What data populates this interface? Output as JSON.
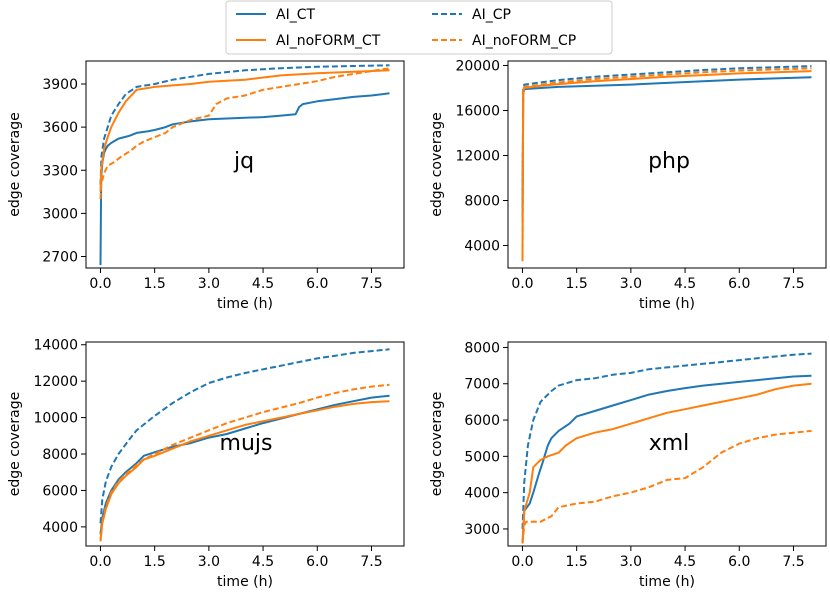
{
  "colors": {
    "ct": "#1f77b4",
    "cp": "#ff7f0e"
  },
  "legend": {
    "items": [
      {
        "label": "AI_CT",
        "color": "#1f77b4",
        "dash": false
      },
      {
        "label": "AI_CP",
        "color": "#1f77b4",
        "dash": true
      },
      {
        "label": "AI_noFORM_CT",
        "color": "#ff7f0e",
        "dash": false
      },
      {
        "label": "AI_noFORM_CP",
        "color": "#ff7f0e",
        "dash": true
      }
    ]
  },
  "chart_data": [
    {
      "type": "line",
      "title": "jq",
      "xlabel": "time (h)",
      "ylabel": "edge coverage",
      "xlim": [
        -0.4,
        8.4
      ],
      "ylim": [
        2620,
        4060
      ],
      "xticks": [
        0.0,
        1.5,
        3.0,
        4.5,
        6.0,
        7.5
      ],
      "xtick_labels": [
        "0.0",
        "1.5",
        "3.0",
        "4.5",
        "6.0",
        "7.5"
      ],
      "yticks": [
        2700,
        3000,
        3300,
        3600,
        3900
      ],
      "ytick_labels": [
        "2700",
        "3000",
        "3300",
        "3600",
        "3900"
      ],
      "series": [
        {
          "name": "AI_CT",
          "color": "#1f77b4",
          "dash": false,
          "x": [
            0,
            0.02,
            0.05,
            0.1,
            0.15,
            0.2,
            0.3,
            0.5,
            0.8,
            1.0,
            1.3,
            1.5,
            1.8,
            2.0,
            2.5,
            3.0,
            3.5,
            4.0,
            4.5,
            5.0,
            5.4,
            5.5,
            5.6,
            6.0,
            6.5,
            7.0,
            7.5,
            8.0
          ],
          "y": [
            2640,
            3250,
            3350,
            3420,
            3450,
            3470,
            3490,
            3520,
            3540,
            3560,
            3570,
            3580,
            3600,
            3620,
            3640,
            3655,
            3660,
            3665,
            3670,
            3680,
            3690,
            3740,
            3760,
            3780,
            3795,
            3810,
            3820,
            3835
          ]
        },
        {
          "name": "AI_CP",
          "color": "#1f77b4",
          "dash": true,
          "x": [
            0,
            0.03,
            0.1,
            0.2,
            0.3,
            0.5,
            0.7,
            1.0,
            1.5,
            2.0,
            2.5,
            3.0,
            4.0,
            5.0,
            6.0,
            7.0,
            8.0
          ],
          "y": [
            3200,
            3400,
            3520,
            3600,
            3680,
            3760,
            3830,
            3880,
            3900,
            3930,
            3950,
            3970,
            3995,
            4010,
            4020,
            4025,
            4030
          ]
        },
        {
          "name": "AI_noFORM_CT",
          "color": "#ff7f0e",
          "dash": false,
          "x": [
            0,
            0.02,
            0.1,
            0.2,
            0.3,
            0.5,
            0.7,
            1.0,
            1.5,
            2.0,
            2.5,
            3.0,
            4.0,
            5.0,
            6.0,
            7.0,
            8.0
          ],
          "y": [
            3150,
            3300,
            3450,
            3530,
            3600,
            3700,
            3780,
            3860,
            3880,
            3890,
            3900,
            3915,
            3930,
            3960,
            3975,
            3985,
            3995
          ]
        },
        {
          "name": "AI_noFORM_CP",
          "color": "#ff7f0e",
          "dash": true,
          "x": [
            0,
            0.02,
            0.1,
            0.2,
            0.4,
            0.6,
            0.8,
            1.0,
            1.2,
            1.5,
            1.8,
            2.0,
            2.5,
            3.0,
            3.2,
            3.5,
            4.0,
            4.5,
            5.0,
            5.5,
            6.0,
            6.5,
            7.0,
            7.5,
            8.0
          ],
          "y": [
            3100,
            3200,
            3280,
            3330,
            3360,
            3400,
            3430,
            3470,
            3500,
            3530,
            3560,
            3600,
            3650,
            3680,
            3760,
            3800,
            3820,
            3860,
            3880,
            3900,
            3920,
            3950,
            3970,
            3990,
            4010
          ]
        }
      ]
    },
    {
      "type": "line",
      "title": "php",
      "xlabel": "time (h)",
      "ylabel": "edge coverage",
      "xlim": [
        -0.4,
        8.4
      ],
      "ylim": [
        2000,
        20400
      ],
      "xticks": [
        0.0,
        1.5,
        3.0,
        4.5,
        6.0,
        7.5
      ],
      "xtick_labels": [
        "0.0",
        "1.5",
        "3.0",
        "4.5",
        "6.0",
        "7.5"
      ],
      "yticks": [
        4000,
        8000,
        12000,
        16000,
        20000
      ],
      "ytick_labels": [
        "4000",
        "8000",
        "12000",
        "16000",
        "20000"
      ],
      "series": [
        {
          "name": "AI_CT",
          "color": "#1f77b4",
          "dash": false,
          "x": [
            0,
            0.02,
            0.05,
            0.5,
            1.0,
            2.0,
            3.0,
            4.0,
            5.0,
            6.0,
            7.0,
            8.0
          ],
          "y": [
            6500,
            17500,
            17900,
            18000,
            18100,
            18200,
            18300,
            18450,
            18600,
            18750,
            18850,
            18950
          ]
        },
        {
          "name": "AI_CP",
          "color": "#1f77b4",
          "dash": true,
          "x": [
            0,
            0.02,
            0.05,
            0.5,
            1.0,
            2.0,
            3.0,
            4.0,
            5.0,
            6.0,
            7.0,
            8.0
          ],
          "y": [
            7000,
            18000,
            18300,
            18500,
            18700,
            19000,
            19200,
            19400,
            19600,
            19750,
            19850,
            19950
          ]
        },
        {
          "name": "AI_noFORM_CT",
          "color": "#ff7f0e",
          "dash": false,
          "x": [
            0,
            0.02,
            0.05,
            0.5,
            1.0,
            2.0,
            3.0,
            4.0,
            5.0,
            6.0,
            7.0,
            8.0
          ],
          "y": [
            2600,
            17700,
            18000,
            18200,
            18350,
            18600,
            18800,
            19000,
            19150,
            19300,
            19400,
            19500
          ]
        },
        {
          "name": "AI_noFORM_CP",
          "color": "#ff7f0e",
          "dash": true,
          "x": [
            0,
            0.02,
            0.05,
            0.5,
            1.0,
            2.0,
            3.0,
            4.0,
            5.0,
            6.0,
            7.0,
            8.0
          ],
          "y": [
            2800,
            17800,
            18100,
            18300,
            18500,
            18800,
            19000,
            19200,
            19400,
            19550,
            19650,
            19750
          ]
        }
      ]
    },
    {
      "type": "line",
      "title": "mujs",
      "xlabel": "time (h)",
      "ylabel": "edge coverage",
      "xlim": [
        -0.4,
        8.4
      ],
      "ylim": [
        2950,
        14150
      ],
      "xticks": [
        0.0,
        1.5,
        3.0,
        4.5,
        6.0,
        7.5
      ],
      "xtick_labels": [
        "0.0",
        "1.5",
        "3.0",
        "4.5",
        "6.0",
        "7.5"
      ],
      "yticks": [
        4000,
        6000,
        8000,
        10000,
        12000,
        14000
      ],
      "ytick_labels": [
        "4000",
        "6000",
        "8000",
        "10000",
        "12000",
        "14000"
      ],
      "series": [
        {
          "name": "AI_CT",
          "color": "#1f77b4",
          "dash": false,
          "x": [
            0,
            0.05,
            0.15,
            0.3,
            0.5,
            0.7,
            1.0,
            1.2,
            1.5,
            2.0,
            2.5,
            3.0,
            3.5,
            4.0,
            4.5,
            5.0,
            5.5,
            6.0,
            6.5,
            7.0,
            7.5,
            8.0
          ],
          "y": [
            3600,
            4500,
            5300,
            6000,
            6600,
            7000,
            7500,
            7900,
            8100,
            8400,
            8600,
            8900,
            9100,
            9400,
            9700,
            9950,
            10200,
            10450,
            10700,
            10900,
            11100,
            11200
          ]
        },
        {
          "name": "AI_CP",
          "color": "#1f77b4",
          "dash": true,
          "x": [
            0,
            0.05,
            0.15,
            0.3,
            0.5,
            0.8,
            1.0,
            1.5,
            2.0,
            2.5,
            3.0,
            3.5,
            4.0,
            4.5,
            5.0,
            5.5,
            6.0,
            6.5,
            7.0,
            7.5,
            8.0
          ],
          "y": [
            4200,
            5500,
            6500,
            7300,
            8000,
            8800,
            9300,
            10100,
            10800,
            11400,
            11900,
            12200,
            12450,
            12650,
            12850,
            13050,
            13250,
            13400,
            13550,
            13650,
            13750
          ]
        },
        {
          "name": "AI_noFORM_CT",
          "color": "#ff7f0e",
          "dash": false,
          "x": [
            0,
            0.05,
            0.15,
            0.3,
            0.5,
            0.7,
            1.0,
            1.2,
            1.5,
            2.0,
            2.5,
            3.0,
            3.5,
            4.0,
            4.5,
            5.0,
            5.5,
            6.0,
            6.5,
            7.0,
            7.5,
            8.0
          ],
          "y": [
            3200,
            4200,
            5000,
            5800,
            6400,
            6800,
            7300,
            7700,
            7900,
            8300,
            8700,
            9000,
            9300,
            9600,
            9800,
            10000,
            10200,
            10400,
            10600,
            10750,
            10850,
            10900
          ]
        },
        {
          "name": "AI_noFORM_CP",
          "color": "#ff7f0e",
          "dash": true,
          "x": [
            0,
            0.05,
            0.15,
            0.3,
            0.5,
            0.7,
            1.0,
            1.2,
            1.5,
            2.0,
            2.5,
            3.0,
            3.5,
            4.0,
            4.5,
            5.0,
            5.5,
            6.0,
            6.5,
            7.0,
            7.5,
            8.0
          ],
          "y": [
            3300,
            4300,
            5100,
            5900,
            6500,
            6900,
            7400,
            7700,
            8000,
            8500,
            8900,
            9300,
            9700,
            10000,
            10300,
            10550,
            10800,
            11100,
            11350,
            11550,
            11700,
            11800
          ]
        }
      ]
    },
    {
      "type": "line",
      "title": "xml",
      "xlabel": "time (h)",
      "ylabel": "edge coverage",
      "xlim": [
        -0.4,
        8.4
      ],
      "ylim": [
        2530,
        8150
      ],
      "xticks": [
        0.0,
        1.5,
        3.0,
        4.5,
        6.0,
        7.5
      ],
      "xtick_labels": [
        "0.0",
        "1.5",
        "3.0",
        "4.5",
        "6.0",
        "7.5"
      ],
      "yticks": [
        3000,
        4000,
        5000,
        6000,
        7000,
        8000
      ],
      "ytick_labels": [
        "3000",
        "4000",
        "5000",
        "6000",
        "7000",
        "8000"
      ],
      "series": [
        {
          "name": "AI_CT",
          "color": "#1f77b4",
          "dash": false,
          "x": [
            0,
            0.05,
            0.2,
            0.3,
            0.45,
            0.55,
            0.7,
            0.8,
            1.0,
            1.3,
            1.5,
            2.0,
            2.5,
            3.0,
            3.5,
            4.0,
            4.5,
            5.0,
            5.5,
            6.0,
            6.5,
            7.0,
            7.5,
            8.0
          ],
          "y": [
            2600,
            3500,
            3700,
            4000,
            4500,
            4800,
            5300,
            5500,
            5700,
            5900,
            6100,
            6250,
            6400,
            6550,
            6700,
            6800,
            6880,
            6950,
            7000,
            7050,
            7100,
            7150,
            7200,
            7220
          ]
        },
        {
          "name": "AI_CP",
          "color": "#1f77b4",
          "dash": true,
          "x": [
            0,
            0.05,
            0.15,
            0.3,
            0.5,
            0.8,
            1.0,
            1.5,
            2.0,
            2.5,
            3.0,
            3.5,
            4.0,
            4.5,
            5.0,
            5.5,
            6.0,
            6.5,
            7.0,
            7.5,
            8.0
          ],
          "y": [
            3000,
            4300,
            5300,
            6000,
            6500,
            6800,
            6950,
            7100,
            7150,
            7250,
            7300,
            7400,
            7450,
            7500,
            7550,
            7600,
            7650,
            7700,
            7750,
            7800,
            7830
          ]
        },
        {
          "name": "AI_noFORM_CT",
          "color": "#ff7f0e",
          "dash": false,
          "x": [
            0,
            0.05,
            0.2,
            0.3,
            0.5,
            0.7,
            1.0,
            1.2,
            1.5,
            2.0,
            2.5,
            3.0,
            3.5,
            4.0,
            4.5,
            5.0,
            5.5,
            6.0,
            6.5,
            7.0,
            7.5,
            8.0
          ],
          "y": [
            2600,
            3500,
            4000,
            4700,
            4900,
            5000,
            5100,
            5300,
            5500,
            5650,
            5750,
            5900,
            6050,
            6200,
            6300,
            6400,
            6500,
            6600,
            6700,
            6850,
            6950,
            7000
          ]
        },
        {
          "name": "AI_noFORM_CP",
          "color": "#ff7f0e",
          "dash": true,
          "x": [
            0,
            0.05,
            0.1,
            0.5,
            0.8,
            1.0,
            1.5,
            2.0,
            2.5,
            3.0,
            3.5,
            4.0,
            4.5,
            5.0,
            5.5,
            6.0,
            6.5,
            7.0,
            7.5,
            8.0
          ],
          "y": [
            2600,
            3100,
            3200,
            3200,
            3350,
            3600,
            3700,
            3750,
            3900,
            4000,
            4150,
            4350,
            4400,
            4700,
            5100,
            5350,
            5500,
            5600,
            5650,
            5700
          ]
        }
      ]
    }
  ]
}
